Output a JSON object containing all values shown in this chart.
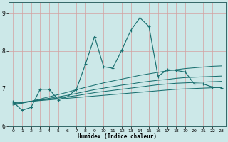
{
  "xlabel": "Humidex (Indice chaleur)",
  "bg_color": "#cce8e8",
  "line_color": "#1a7070",
  "grid_color": "#d4a0a0",
  "xlim": [
    -0.5,
    23.5
  ],
  "ylim": [
    6.0,
    9.3
  ],
  "yticks": [
    6,
    7,
    8,
    9
  ],
  "xticks": [
    0,
    1,
    2,
    3,
    4,
    5,
    6,
    7,
    8,
    9,
    10,
    11,
    12,
    13,
    14,
    15,
    16,
    17,
    18,
    19,
    20,
    21,
    22,
    23
  ],
  "jagged_x": [
    0,
    1,
    2,
    3,
    4,
    5,
    6,
    7,
    8,
    9,
    10,
    11,
    12,
    13,
    14,
    15,
    16,
    17,
    18,
    19,
    20,
    21,
    22,
    23
  ],
  "jagged_y": [
    6.65,
    6.42,
    6.5,
    6.98,
    6.98,
    6.7,
    6.78,
    6.98,
    7.65,
    8.38,
    7.58,
    7.54,
    8.02,
    8.55,
    8.88,
    8.65,
    7.32,
    7.5,
    7.48,
    7.44,
    7.12,
    7.12,
    7.04,
    7.02
  ],
  "smooth_lines": [
    [
      6.62,
      6.64,
      6.66,
      6.68,
      6.7,
      6.72,
      6.74,
      6.76,
      6.78,
      6.8,
      6.82,
      6.84,
      6.86,
      6.88,
      6.9,
      6.92,
      6.94,
      6.96,
      6.98,
      6.99,
      7.0,
      7.01,
      7.02,
      7.03
    ],
    [
      6.6,
      6.63,
      6.66,
      6.69,
      6.72,
      6.75,
      6.78,
      6.81,
      6.85,
      6.89,
      6.92,
      6.95,
      6.98,
      7.01,
      7.04,
      7.07,
      7.1,
      7.12,
      7.14,
      7.15,
      7.16,
      7.17,
      7.18,
      7.19
    ],
    [
      6.58,
      6.62,
      6.66,
      6.7,
      6.74,
      6.78,
      6.82,
      6.87,
      6.92,
      6.97,
      7.01,
      7.05,
      7.09,
      7.12,
      7.16,
      7.19,
      7.22,
      7.24,
      7.27,
      7.29,
      7.3,
      7.31,
      7.32,
      7.33
    ],
    [
      6.56,
      6.61,
      6.66,
      6.72,
      6.78,
      6.84,
      6.9,
      6.97,
      7.03,
      7.09,
      7.15,
      7.2,
      7.25,
      7.3,
      7.35,
      7.39,
      7.43,
      7.47,
      7.5,
      7.53,
      7.55,
      7.57,
      7.59,
      7.6
    ]
  ]
}
